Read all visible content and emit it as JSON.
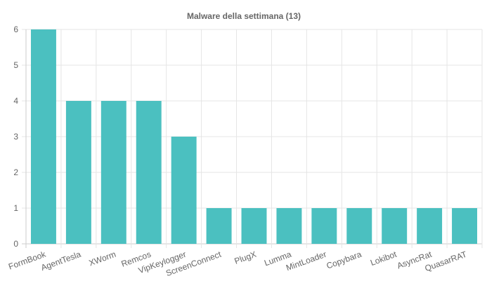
{
  "chart_data": {
    "type": "bar",
    "title": "Malware della settimana (13)",
    "xlabel": "",
    "ylabel": "",
    "categories": [
      "FormBook",
      "AgentTesla",
      "XWorm",
      "Remcos",
      "VipKeylogger",
      "ScreenConnect",
      "PlugX",
      "Lumma",
      "MintLoader",
      "Copybara",
      "Lokibot",
      "AsyncRat",
      "QuasarRAT"
    ],
    "values": [
      6,
      4,
      4,
      4,
      3,
      1,
      1,
      1,
      1,
      1,
      1,
      1,
      1
    ],
    "ylim": [
      0,
      6
    ],
    "yticks": [
      0,
      1,
      2,
      3,
      4,
      5,
      6
    ],
    "grid": true,
    "legend": "none",
    "bar_color": "#4bc0c0"
  }
}
